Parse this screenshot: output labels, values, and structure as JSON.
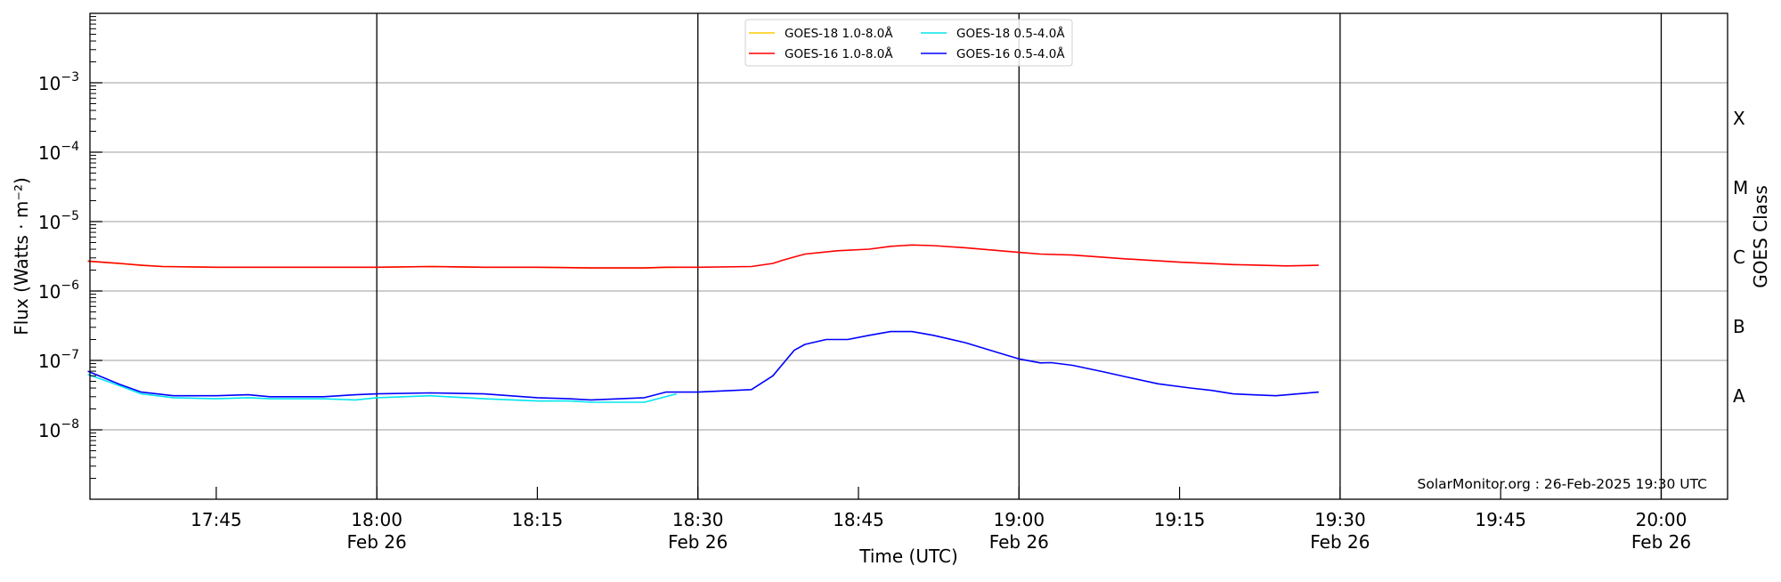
{
  "chart_data": {
    "type": "line",
    "xlabel": "Time (UTC)",
    "ylabel": "Flux (Watts · m⁻²)",
    "ylabel_right": "GOES Class",
    "yscale": "log",
    "ylim": [
      1e-09,
      0.01
    ],
    "xlim": [
      "17:33",
      "20:06"
    ],
    "grid": "horizontal at decades; vertical black lines every 30 min",
    "legend_placement": "top-center",
    "y_ticks": [
      {
        "value": 0.001,
        "base": "10",
        "exp": "−3"
      },
      {
        "value": 0.0001,
        "base": "10",
        "exp": "−4"
      },
      {
        "value": 1e-05,
        "base": "10",
        "exp": "−5"
      },
      {
        "value": 1e-06,
        "base": "10",
        "exp": "−6"
      },
      {
        "value": 1e-07,
        "base": "10",
        "exp": "−7"
      },
      {
        "value": 1e-08,
        "base": "10",
        "exp": "−8"
      }
    ],
    "x_ticks": [
      {
        "time": "17:45",
        "label": "17:45",
        "date": ""
      },
      {
        "time": "18:00",
        "label": "18:00",
        "date": "Feb 26"
      },
      {
        "time": "18:15",
        "label": "18:15",
        "date": ""
      },
      {
        "time": "18:30",
        "label": "18:30",
        "date": "Feb 26"
      },
      {
        "time": "18:45",
        "label": "18:45",
        "date": ""
      },
      {
        "time": "19:00",
        "label": "19:00",
        "date": "Feb 26"
      },
      {
        "time": "19:15",
        "label": "19:15",
        "date": ""
      },
      {
        "time": "19:30",
        "label": "19:30",
        "date": "Feb 26"
      },
      {
        "time": "19:45",
        "label": "19:45",
        "date": ""
      },
      {
        "time": "20:00",
        "label": "20:00",
        "date": "Feb 26"
      }
    ],
    "vertical_lines": [
      "18:00",
      "18:30",
      "19:00",
      "19:30",
      "20:00"
    ],
    "goes_classes": [
      {
        "label": "X",
        "flux_low": 0.0001
      },
      {
        "label": "M",
        "flux_low": 1e-05
      },
      {
        "label": "C",
        "flux_low": 1e-06
      },
      {
        "label": "B",
        "flux_low": 1e-07
      },
      {
        "label": "A",
        "flux_low": 1e-08
      }
    ],
    "series": [
      {
        "name": "GOES-18 1.0-8.0Å",
        "color": "#ffcc00",
        "x": [
          "17:33",
          "17:38",
          "17:40",
          "17:45",
          "17:50",
          "18:00",
          "18:05",
          "18:10",
          "18:15",
          "18:20",
          "18:25",
          "18:28"
        ],
        "y": [
          2.7e-06,
          2.35e-06,
          2.25e-06,
          2.2e-06,
          2.2e-06,
          2.2e-06,
          2.25e-06,
          2.2e-06,
          2.2e-06,
          2.15e-06,
          2.15e-06,
          2.2e-06
        ]
      },
      {
        "name": "GOES-18 0.5-4.0Å",
        "color": "#00e5ee",
        "x": [
          "17:33",
          "17:36",
          "17:38",
          "17:41",
          "17:45",
          "17:48",
          "17:50",
          "17:55",
          "17:58",
          "18:00",
          "18:05",
          "18:10",
          "18:15",
          "18:18",
          "18:20",
          "18:25",
          "18:28"
        ],
        "y": [
          6.3e-08,
          4.3e-08,
          3.3e-08,
          2.9e-08,
          2.8e-08,
          2.9e-08,
          2.8e-08,
          2.8e-08,
          2.7e-08,
          2.9e-08,
          3.1e-08,
          2.8e-08,
          2.6e-08,
          2.6e-08,
          2.5e-08,
          2.5e-08,
          3.3e-08
        ]
      },
      {
        "name": "GOES-16 1.0-8.0Å",
        "color": "#ff0000",
        "x": [
          "17:33",
          "17:36",
          "17:38",
          "17:40",
          "17:45",
          "17:50",
          "18:00",
          "18:05",
          "18:10",
          "18:15",
          "18:20",
          "18:25",
          "18:27",
          "18:30",
          "18:35",
          "18:37",
          "18:38",
          "18:40",
          "18:43",
          "18:46",
          "18:48",
          "18:50",
          "18:52",
          "18:55",
          "19:00",
          "19:02",
          "19:05",
          "19:10",
          "19:15",
          "19:20",
          "19:25",
          "19:28"
        ],
        "y": [
          2.7e-06,
          2.5e-06,
          2.35e-06,
          2.25e-06,
          2.2e-06,
          2.2e-06,
          2.2e-06,
          2.25e-06,
          2.2e-06,
          2.2e-06,
          2.15e-06,
          2.15e-06,
          2.2e-06,
          2.2e-06,
          2.25e-06,
          2.5e-06,
          2.8e-06,
          3.4e-06,
          3.8e-06,
          4e-06,
          4.4e-06,
          4.6e-06,
          4.5e-06,
          4.2e-06,
          3.6e-06,
          3.4e-06,
          3.3e-06,
          2.9e-06,
          2.6e-06,
          2.4e-06,
          2.3e-06,
          2.35e-06
        ]
      },
      {
        "name": "GOES-16 0.5-4.0Å",
        "color": "#0000ff",
        "x": [
          "17:33",
          "17:36",
          "17:38",
          "17:41",
          "17:45",
          "17:48",
          "17:50",
          "17:55",
          "17:58",
          "18:00",
          "18:05",
          "18:10",
          "18:15",
          "18:18",
          "18:20",
          "18:25",
          "18:27",
          "18:30",
          "18:35",
          "18:37",
          "18:39",
          "18:40",
          "18:42",
          "18:44",
          "18:46",
          "18:48",
          "18:50",
          "18:52",
          "18:55",
          "18:58",
          "19:00",
          "19:02",
          "19:03",
          "19:05",
          "19:08",
          "19:10",
          "19:13",
          "19:16",
          "19:18",
          "19:20",
          "19:24",
          "19:28"
        ],
        "y": [
          7e-08,
          4.5e-08,
          3.5e-08,
          3.1e-08,
          3.1e-08,
          3.2e-08,
          3e-08,
          3e-08,
          3.2e-08,
          3.3e-08,
          3.4e-08,
          3.3e-08,
          2.9e-08,
          2.8e-08,
          2.7e-08,
          2.9e-08,
          3.5e-08,
          3.5e-08,
          3.8e-08,
          6e-08,
          1.4e-07,
          1.7e-07,
          2e-07,
          2e-07,
          2.3e-07,
          2.6e-07,
          2.6e-07,
          2.3e-07,
          1.8e-07,
          1.3e-07,
          1.05e-07,
          9.2e-08,
          9.3e-08,
          8.5e-08,
          6.8e-08,
          5.8e-08,
          4.6e-08,
          4e-08,
          3.7e-08,
          3.3e-08,
          3.1e-08,
          3.5e-08
        ]
      }
    ],
    "legend_order": [
      0,
      1,
      2,
      3
    ],
    "annotation": "SolarMonitor.org : 26-Feb-2025 19:30 UTC"
  }
}
